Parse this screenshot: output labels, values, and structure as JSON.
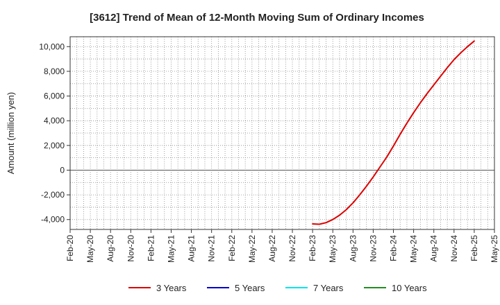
{
  "chart_data": {
    "type": "line",
    "title": "[3612]  Trend of Mean of 12-Month Moving Sum of Ordinary Incomes",
    "ylabel": "Amount (million yen)",
    "xlabel": "",
    "x_ticks": [
      "Feb-20",
      "May-20",
      "Aug-20",
      "Nov-20",
      "Feb-21",
      "May-21",
      "Aug-21",
      "Nov-21",
      "Feb-22",
      "May-22",
      "Aug-22",
      "Nov-22",
      "Feb-23",
      "May-23",
      "Aug-23",
      "Nov-23",
      "Feb-24",
      "May-24",
      "Aug-24",
      "Nov-24",
      "Feb-25",
      "May-25"
    ],
    "y_ticks": [
      10000,
      8000,
      6000,
      4000,
      2000,
      0,
      -2000,
      -4000
    ],
    "y_tick_labels": [
      "10,000",
      "8,000",
      "6,000",
      "4,000",
      "2,000",
      "0",
      "-2,000",
      "-4,000"
    ],
    "ylim": [
      -4800,
      10800
    ],
    "xlim": [
      "Feb-20",
      "May-25"
    ],
    "grid": true,
    "legend_position": "bottom",
    "series": [
      {
        "name": "3 Years",
        "color": "#dd0000",
        "x": [
          "Feb-23",
          "Mar-23",
          "Apr-23",
          "May-23",
          "Jun-23",
          "Jul-23",
          "Aug-23",
          "Sep-23",
          "Oct-23",
          "Nov-23",
          "Dec-23",
          "Jan-24",
          "Feb-24",
          "Mar-24",
          "Apr-24",
          "May-24",
          "Jun-24",
          "Jul-24",
          "Aug-24",
          "Sep-24",
          "Oct-24",
          "Nov-24",
          "Dec-24",
          "Jan-25",
          "Feb-25"
        ],
        "values": [
          -4350,
          -4380,
          -4250,
          -4000,
          -3650,
          -3200,
          -2650,
          -2000,
          -1300,
          -550,
          250,
          1050,
          1950,
          2900,
          3800,
          4650,
          5450,
          6200,
          6900,
          7600,
          8300,
          8950,
          9500,
          10000,
          10450
        ]
      },
      {
        "name": "5 Years",
        "color": "#0000cc",
        "x": [],
        "values": []
      },
      {
        "name": "7 Years",
        "color": "#00e5ee",
        "x": [],
        "values": []
      },
      {
        "name": "10 Years",
        "color": "#228b22",
        "x": [],
        "values": []
      }
    ]
  }
}
